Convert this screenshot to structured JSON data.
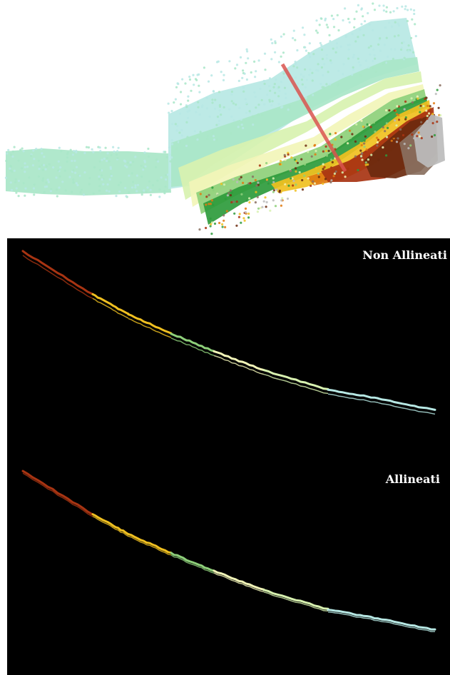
{
  "labels": {
    "non_aligned": "Non Allineati",
    "aligned": "Allineati"
  },
  "colors": {
    "background_top": "#ffffff",
    "background_bottom": "#000000",
    "section_line": "#d9534f",
    "elevation_ramp": [
      "#b7e8e4",
      "#a9e6c8",
      "#d8f2b0",
      "#f2f5b8",
      "#8ed07a",
      "#2e9b3c",
      "#f0c020",
      "#e07a10",
      "#a83412",
      "#6b2a0e",
      "#8a7060",
      "#bcbcbc"
    ]
  }
}
